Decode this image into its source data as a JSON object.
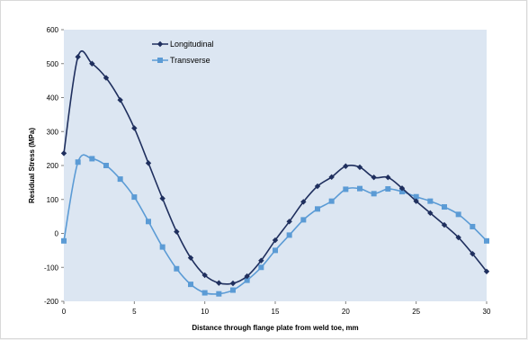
{
  "chart_data": {
    "type": "line",
    "title": "",
    "xlabel": "Distance through flange plate from weld toe, mm",
    "ylabel": "Residual Stress (MPa)",
    "xlim": [
      0,
      30
    ],
    "ylim": [
      -200,
      600
    ],
    "xticks": [
      0,
      5,
      10,
      15,
      20,
      25,
      30
    ],
    "yticks": [
      -200,
      -100,
      0,
      100,
      200,
      300,
      400,
      500,
      600
    ],
    "xtick_labels": [
      "0",
      "5",
      "10",
      "15",
      "20",
      "25",
      "30"
    ],
    "ytick_labels": [
      "-200",
      "-100",
      "0",
      "100",
      "200",
      "300",
      "400",
      "500",
      "600"
    ],
    "grid": false,
    "plot_background": "#dce6f2",
    "legend_position": "top-center (inside plot)",
    "series": [
      {
        "name": "Longitudinal",
        "color": "#1f2f5e",
        "marker": "diamond",
        "x": [
          0,
          1,
          2,
          3,
          4,
          5,
          6,
          7,
          8,
          9,
          10,
          11,
          12,
          13,
          14,
          15,
          16,
          17,
          18,
          19,
          20,
          21,
          22,
          23,
          24,
          25,
          26,
          27,
          28,
          29,
          30
        ],
        "y": [
          236,
          520,
          500,
          458,
          393,
          310,
          207,
          103,
          5,
          -72,
          -123,
          -146,
          -147,
          -126,
          -80,
          -20,
          35,
          93,
          139,
          166,
          198,
          195,
          165,
          165,
          133,
          95,
          60,
          25,
          -12,
          -60,
          -112
        ]
      },
      {
        "name": "Transverse",
        "color": "#5b9bd5",
        "marker": "square",
        "x": [
          0,
          1,
          2,
          3,
          4,
          5,
          6,
          7,
          8,
          9,
          10,
          11,
          12,
          13,
          14,
          15,
          16,
          17,
          18,
          19,
          20,
          21,
          22,
          23,
          24,
          25,
          26,
          27,
          28,
          29,
          30
        ],
        "y": [
          -22,
          210,
          220,
          200,
          160,
          107,
          35,
          -40,
          -104,
          -150,
          -175,
          -178,
          -167,
          -138,
          -100,
          -50,
          -5,
          40,
          72,
          95,
          130,
          132,
          117,
          131,
          123,
          108,
          95,
          78,
          56,
          20,
          -22
        ]
      }
    ]
  }
}
